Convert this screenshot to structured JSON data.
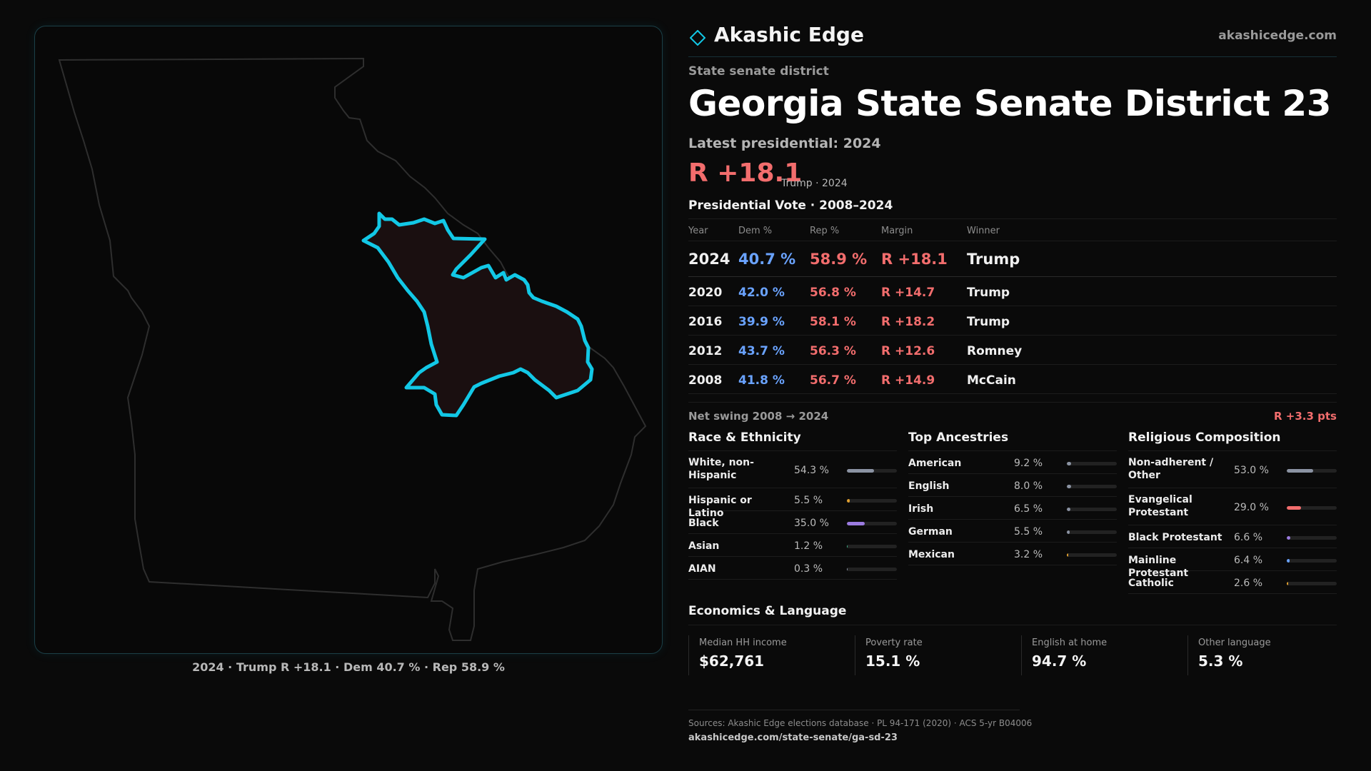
{
  "brand": {
    "name": "Akashic Edge",
    "url": "akashicedge.com",
    "accent": "#12c8e6"
  },
  "district": {
    "type_label": "State senate district",
    "title": "Georgia State Senate District 23",
    "latest_label": "Latest presidential: 2024",
    "headline_margin": "R +18.1",
    "headline_note": "Trump · 2024"
  },
  "map": {
    "caption": "2024 · Trump R +18.1 · Dem 40.7 % · Rep 58.9 %",
    "outline_color": "#2e2e2e",
    "district_stroke": "#12c8e6",
    "district_fill": "#1a0f10"
  },
  "presidential": {
    "title": "Presidential Vote · 2008–2024",
    "headers": {
      "year": "Year",
      "dem": "Dem %",
      "rep": "Rep %",
      "margin": "Margin",
      "winner": "Winner"
    },
    "rows": [
      {
        "year": "2024",
        "dem": "40.7 %",
        "rep": "58.9 %",
        "margin": "R +18.1",
        "winner": "Trump"
      },
      {
        "year": "2020",
        "dem": "42.0 %",
        "rep": "56.8 %",
        "margin": "R +14.7",
        "winner": "Trump"
      },
      {
        "year": "2016",
        "dem": "39.9 %",
        "rep": "58.1 %",
        "margin": "R +18.2",
        "winner": "Trump"
      },
      {
        "year": "2012",
        "dem": "43.7 %",
        "rep": "56.3 %",
        "margin": "R +12.6",
        "winner": "Romney"
      },
      {
        "year": "2008",
        "dem": "41.8 %",
        "rep": "56.7 %",
        "margin": "R +14.9",
        "winner": "McCain"
      }
    ],
    "swing_label": "Net swing 2008 → 2024",
    "swing_value": "R +3.3 pts"
  },
  "race": {
    "title": "Race & Ethnicity",
    "rows": [
      {
        "label": "White, non-Hispanic",
        "pct": "54.3 %",
        "value": 54.3,
        "color": "#8b93a3"
      },
      {
        "label": "Hispanic or Latino",
        "pct": "5.5 %",
        "value": 5.5,
        "color": "#e0a030"
      },
      {
        "label": "Black",
        "pct": "35.0 %",
        "value": 35.0,
        "color": "#9b7be0"
      },
      {
        "label": "Asian",
        "pct": "1.2 %",
        "value": 1.2,
        "color": "#3fb58a"
      },
      {
        "label": "AIAN",
        "pct": "0.3 %",
        "value": 0.3,
        "color": "#8b93a3"
      }
    ]
  },
  "ancestry": {
    "title": "Top Ancestries",
    "rows": [
      {
        "label": "American",
        "pct": "9.2 %",
        "value": 9.2,
        "color": "#8b93a3"
      },
      {
        "label": "English",
        "pct": "8.0 %",
        "value": 8.0,
        "color": "#8b93a3"
      },
      {
        "label": "Irish",
        "pct": "6.5 %",
        "value": 6.5,
        "color": "#8b93a3"
      },
      {
        "label": "German",
        "pct": "5.5 %",
        "value": 5.5,
        "color": "#8b93a3"
      },
      {
        "label": "Mexican",
        "pct": "3.2 %",
        "value": 3.2,
        "color": "#e0a030"
      }
    ]
  },
  "religion": {
    "title": "Religious Composition",
    "rows": [
      {
        "label": "Non-adherent / Other",
        "pct": "53.0 %",
        "value": 53.0,
        "color": "#8b93a3"
      },
      {
        "label": "Evangelical Protestant",
        "pct": "29.0 %",
        "value": 29.0,
        "color": "#f26d6d"
      },
      {
        "label": "Black Protestant",
        "pct": "6.6 %",
        "value": 6.6,
        "color": "#9b7be0"
      },
      {
        "label": "Mainline Protestant",
        "pct": "6.4 %",
        "value": 6.4,
        "color": "#6aa3ff"
      },
      {
        "label": "Catholic",
        "pct": "2.6 %",
        "value": 2.6,
        "color": "#e0a030"
      }
    ]
  },
  "economics": {
    "title": "Economics & Language",
    "items": [
      {
        "label": "Median HH income",
        "value": "$62,761"
      },
      {
        "label": "Poverty rate",
        "value": "15.1 %"
      },
      {
        "label": "English at home",
        "value": "94.7 %"
      },
      {
        "label": "Other language",
        "value": "5.3 %"
      }
    ]
  },
  "sources": {
    "text": "Sources: Akashic Edge elections database · PL 94-171 (2020) · ACS 5-yr B04006",
    "url": "akashicedge.com/state-senate/ga-sd-23"
  }
}
